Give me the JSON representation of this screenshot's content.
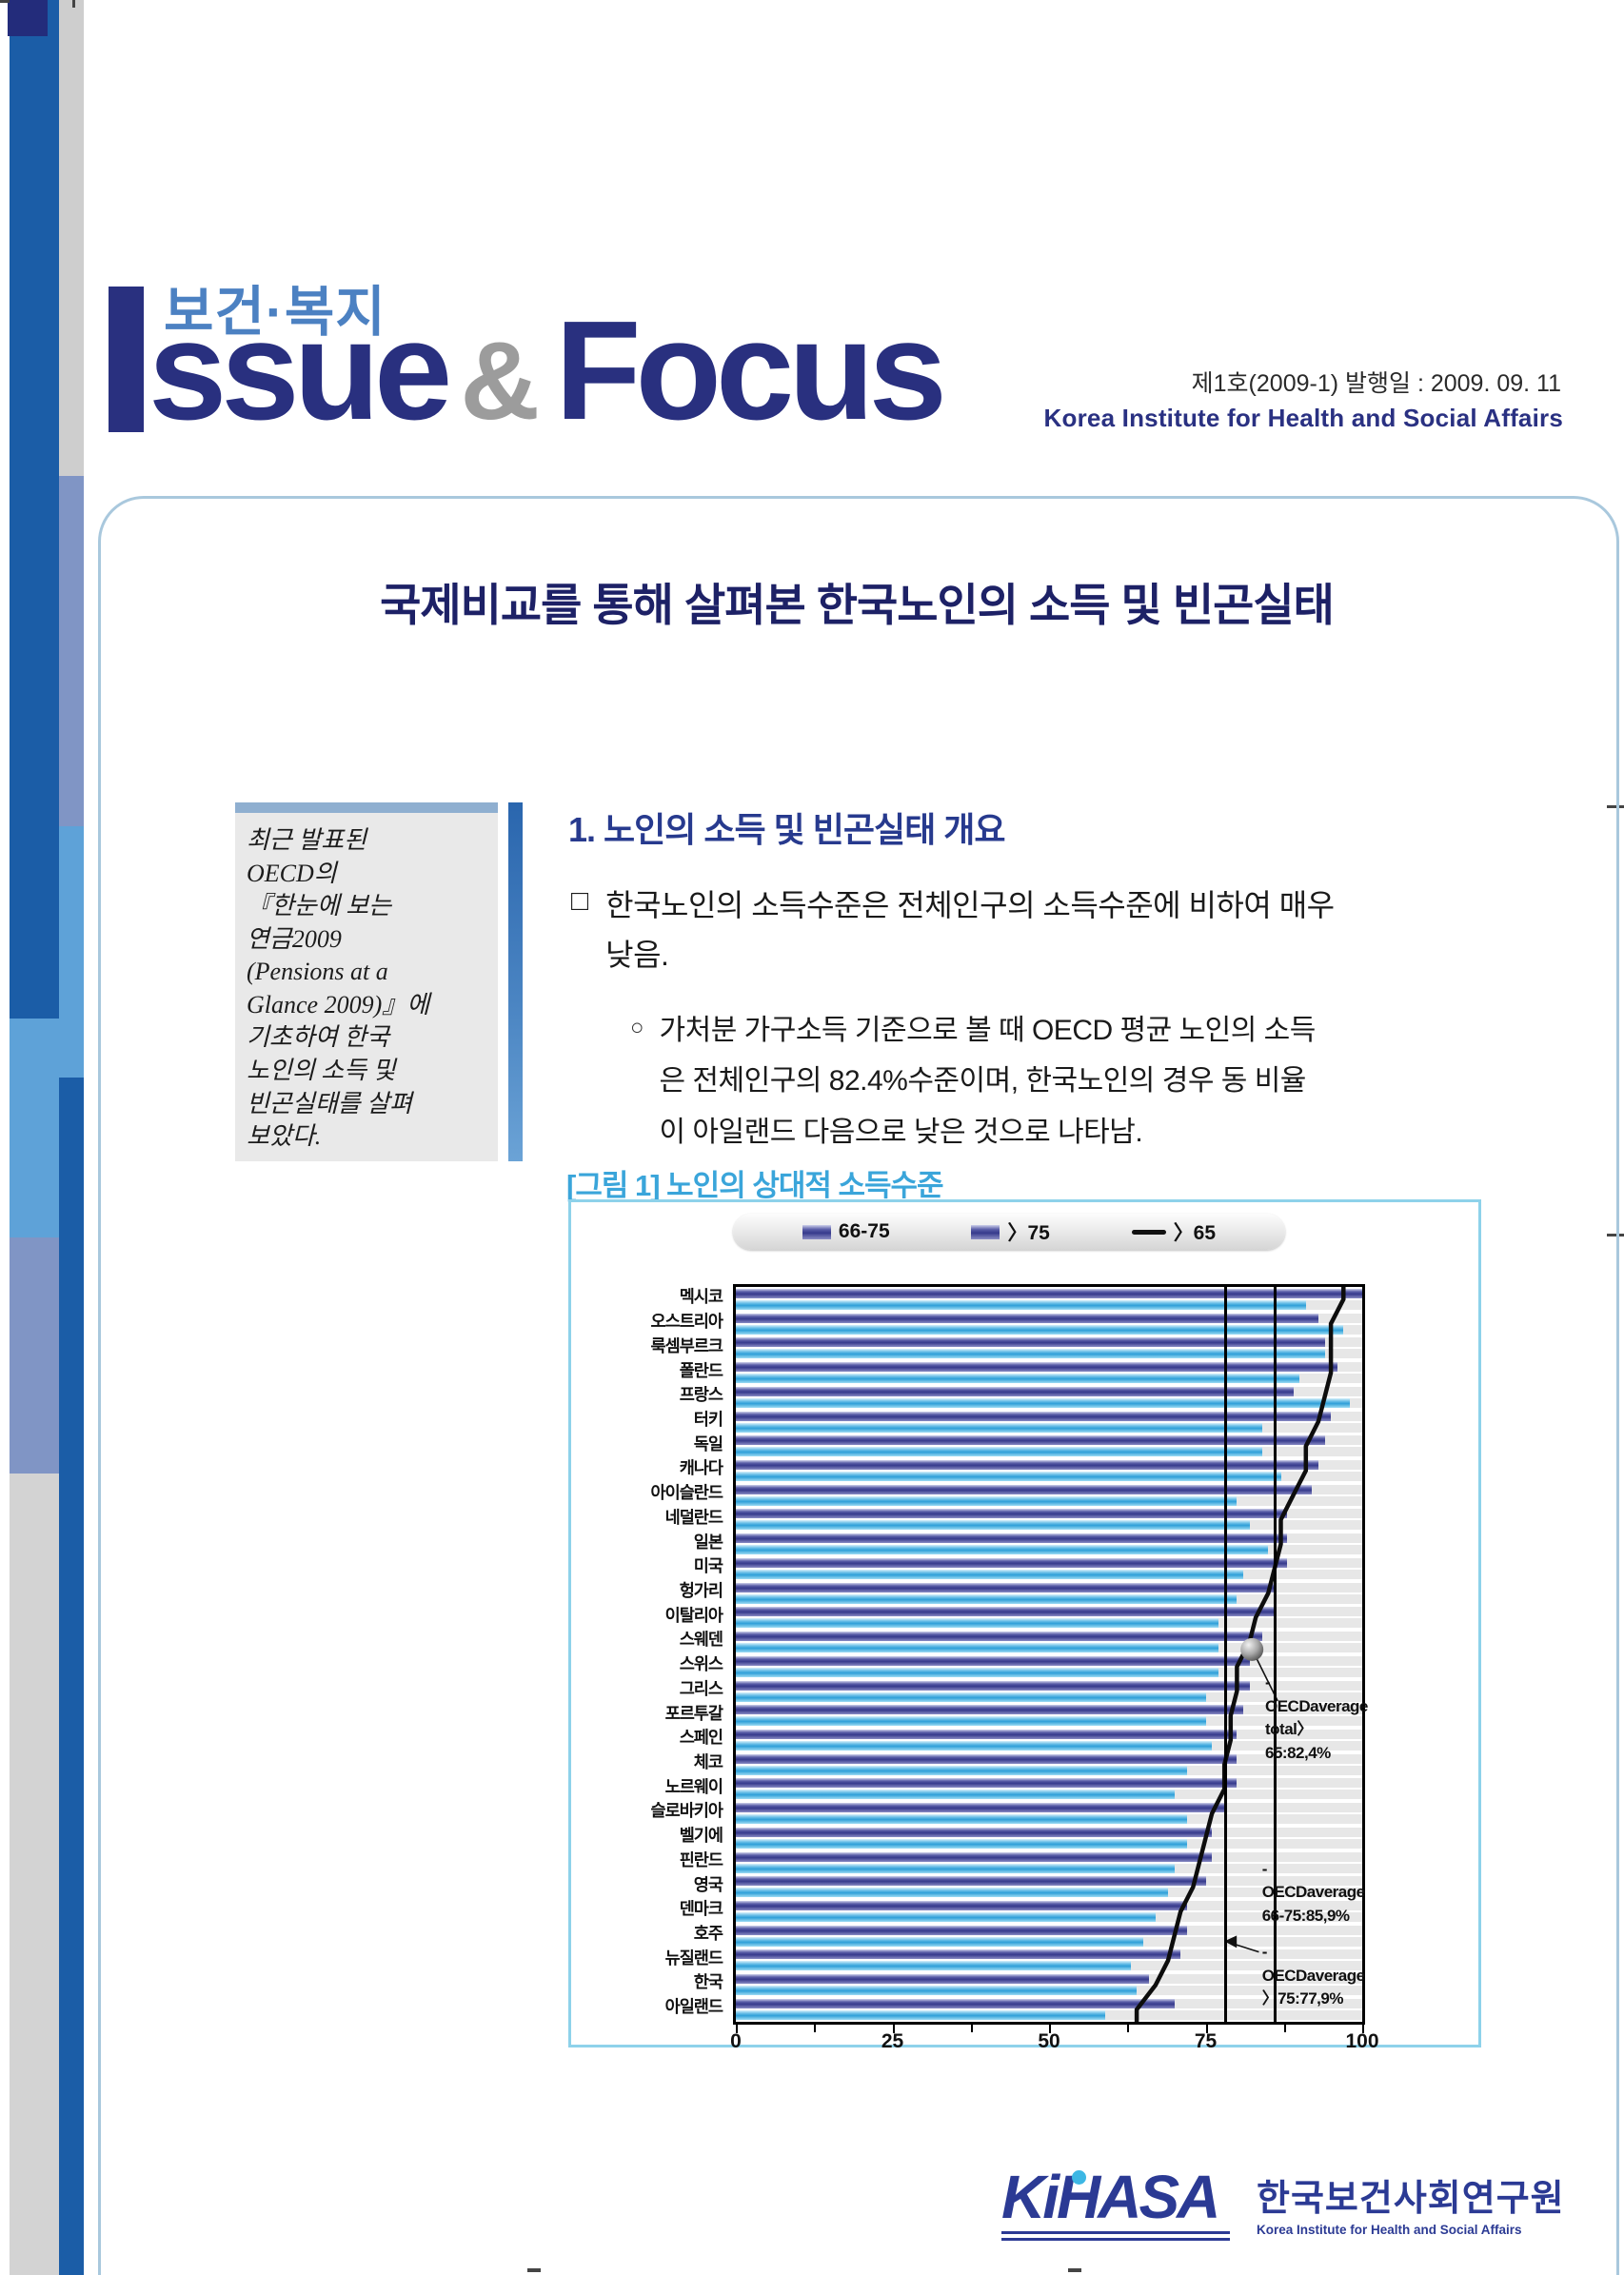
{
  "masthead": {
    "korean_label": "보건·복지",
    "brand_ssue": "ssue",
    "brand_amp": "&",
    "brand_focus": "Focus",
    "issue_info": "제1호(2009-1) 발행일 : 2009. 09. 11",
    "institute": "Korea Institute for Health and Social Affairs"
  },
  "title": "국제비교를 통해 살펴본 한국노인의 소득 및 빈곤실태",
  "summary_box": {
    "text": "최근 발표된\nOECD의\n『한눈에 보는\n연금2009\n(Pensions at a\nGlance 2009)』에\n기초하여 한국\n노인의 소득 및\n빈곤실태를 살펴\n보았다."
  },
  "section1": {
    "heading": "1.  노인의 소득 및 빈곤실태 개요",
    "bullet1_marker": "□",
    "bullet1": "한국노인의 소득수준은 전체인구의 소득수준에 비하여 매우\n낮음.",
    "bullet2_marker": "○",
    "bullet2": "가처분 가구소득 기준으로 볼 때 OECD 평균 노인의 소득\n은 전체인구의 82.4%수준이며, 한국노인의 경우 동 비율\n이 아일랜드 다음으로 낮은 것으로 나타남."
  },
  "figure": {
    "caption": "[그림 1] 노인의 상대적 소득수준"
  },
  "chart_data": {
    "type": "bar",
    "orientation": "horizontal",
    "title": "[그림 1] 노인의 상대적 소득수준",
    "unit": "% of population income",
    "xlim": [
      0,
      100
    ],
    "xticks": [
      0,
      25,
      50,
      75,
      100
    ],
    "minor_ticks": [
      12.5,
      37.5,
      62.5,
      87.5
    ],
    "grid": false,
    "legend_position": "top",
    "legend_items": [
      {
        "type": "bar",
        "label": "66-75"
      },
      {
        "type": "bar",
        "label": "〉75"
      },
      {
        "type": "line",
        "label": "〉65"
      }
    ],
    "colors": {
      "bar_66_75": "#3c4090",
      "bar_over75": "#3aa7dc",
      "line_over65": "#111111",
      "plot_bg": "#e7e7e7"
    },
    "categories": [
      "멕시코",
      "오스트리아",
      "룩셈부르크",
      "폴란드",
      "프랑스",
      "터키",
      "독일",
      "캐나다",
      "아이슬란드",
      "네덜란드",
      "일본",
      "미국",
      "헝가리",
      "이탈리아",
      "스웨덴",
      "스위스",
      "그리스",
      "포르투갈",
      "스페인",
      "체코",
      "노르웨이",
      "슬로바키아",
      "벨기에",
      "핀란드",
      "영국",
      "덴마크",
      "호주",
      "뉴질랜드",
      "한국",
      "아일랜드"
    ],
    "series": [
      {
        "name": "66-75",
        "style": "bar",
        "values": [
          100,
          93,
          94,
          96,
          89,
          95,
          94,
          93,
          92,
          88,
          88,
          88,
          86,
          86,
          84,
          82,
          82,
          81,
          80,
          80,
          80,
          78,
          76,
          76,
          75,
          72,
          72,
          71,
          66,
          70
        ]
      },
      {
        "name": "〉75",
        "style": "bar",
        "values": [
          91,
          97,
          94,
          90,
          98,
          84,
          84,
          87,
          80,
          82,
          85,
          81,
          80,
          77,
          77,
          77,
          75,
          75,
          76,
          72,
          70,
          72,
          72,
          70,
          69,
          67,
          65,
          63,
          64,
          59
        ]
      },
      {
        "name": "〉65",
        "style": "line",
        "values": [
          97,
          95,
          95,
          95,
          94,
          93,
          91,
          91,
          89,
          87,
          87,
          86,
          85,
          83,
          82,
          80,
          80,
          79,
          79,
          78,
          78,
          76,
          75,
          74,
          73,
          71,
          70,
          69,
          67,
          64
        ]
      }
    ],
    "reference_lines": [
      {
        "label": "OECD average 〉75",
        "value": 77.9
      },
      {
        "label": "OECD average 66-75",
        "value": 85.9
      }
    ],
    "marker": {
      "label": "OECD average total 〉65",
      "value": 82.4,
      "row": 14.8
    },
    "annotations": [
      {
        "lines": "-OECDaverage\ntotal〉65:82,4%",
        "x": 84.5,
        "row": 15.7
      },
      {
        "lines": "-OECDaverage\n66-75:85,9%",
        "x": 84.0,
        "row": 23.3
      },
      {
        "lines": "-OECDaverage\n〉75:77,9%",
        "x": 84.0,
        "row": 26.7
      }
    ],
    "connectors": [
      {
        "x1": 83.2,
        "r1": 15.2,
        "x2": 86.5,
        "r2": 16.9,
        "arrow": false
      },
      {
        "x1": 83.5,
        "r1": 27.15,
        "x2": 78.6,
        "r2": 26.75,
        "arrow": true
      }
    ]
  },
  "footer_logo": {
    "kihasa": "KiHASA",
    "korean": "한국보건사회연구원",
    "english": "Korea Institute for Health and Social Affairs"
  }
}
